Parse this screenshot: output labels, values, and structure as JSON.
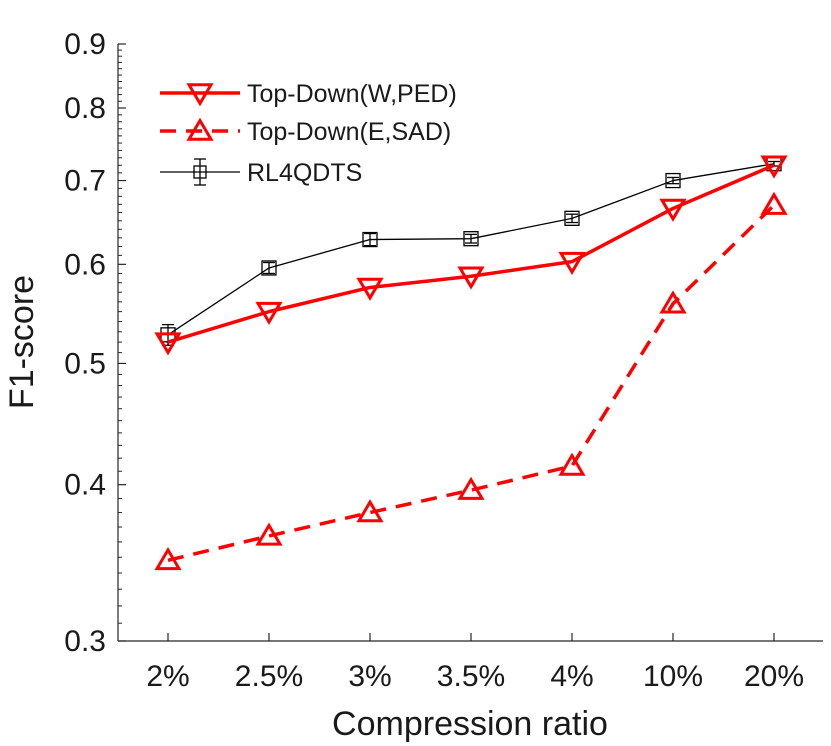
{
  "chart_data": {
    "type": "line",
    "title": "",
    "xlabel": "Compression ratio",
    "ylabel": "F1-score",
    "yscale": "log",
    "ylim": [
      0.3,
      0.9
    ],
    "yticks": [
      0.3,
      0.4,
      0.5,
      0.6,
      0.7,
      0.8,
      0.9
    ],
    "ytick_labels": [
      "0.3",
      "0.4",
      "0.5",
      "0.6",
      "0.7",
      "0.8",
      "0.9"
    ],
    "categories": [
      "2%",
      "2.5%",
      "3%",
      "3.5%",
      "4%",
      "10%",
      "20%"
    ],
    "grid": false,
    "legend_position": "top-left",
    "series": [
      {
        "name": "Top-Down(W,PED)",
        "color": "#ff0000",
        "line_style": "solid",
        "marker": "triangle-down",
        "values": [
          0.52,
          0.55,
          0.575,
          0.587,
          0.603,
          0.665,
          0.72
        ]
      },
      {
        "name": "Top-Down(E,SAD)",
        "color": "#ff0000",
        "line_style": "dashed",
        "marker": "triangle-up",
        "values": [
          0.348,
          0.364,
          0.38,
          0.396,
          0.414,
          0.558,
          0.669
        ]
      },
      {
        "name": "RL4QDTS",
        "color": "#000000",
        "line_style": "solid",
        "marker": "square",
        "error_bars": true,
        "values": [
          0.527,
          0.596,
          0.628,
          0.629,
          0.653,
          0.7,
          0.722
        ],
        "errors": [
          0.01,
          0.006,
          0.007,
          0.005,
          0.005,
          0.004,
          0.003
        ]
      }
    ]
  }
}
